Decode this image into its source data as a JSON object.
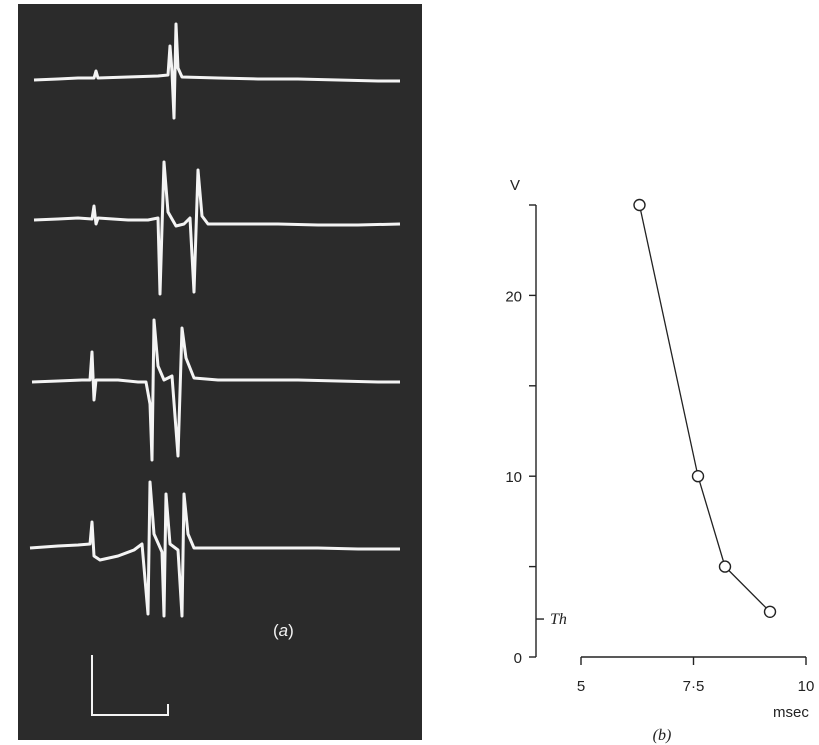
{
  "figure": {
    "panel_a": {
      "label_open": "(",
      "label_letter": "a",
      "label_close": ")"
    },
    "panel_b": {
      "label": "(b)"
    }
  },
  "chart_data": {
    "type": "line",
    "title": "",
    "ylabel": "V",
    "xlabel": "msec",
    "x": [
      6.3,
      7.6,
      8.2,
      9.2
    ],
    "y": [
      25,
      10,
      5,
      2.5
    ],
    "xlim": [
      5,
      10
    ],
    "ylim": [
      0,
      25
    ],
    "xticks": [
      5,
      7.5,
      10
    ],
    "xtick_labels": [
      "5",
      "7·5",
      "10"
    ],
    "yticks": [
      0,
      10,
      20
    ],
    "ytick_labels": [
      "0",
      "10",
      "20"
    ],
    "threshold": {
      "label": "Th",
      "value": 2.1
    },
    "marker": "open-circle",
    "grid": false,
    "legend": "none"
  }
}
